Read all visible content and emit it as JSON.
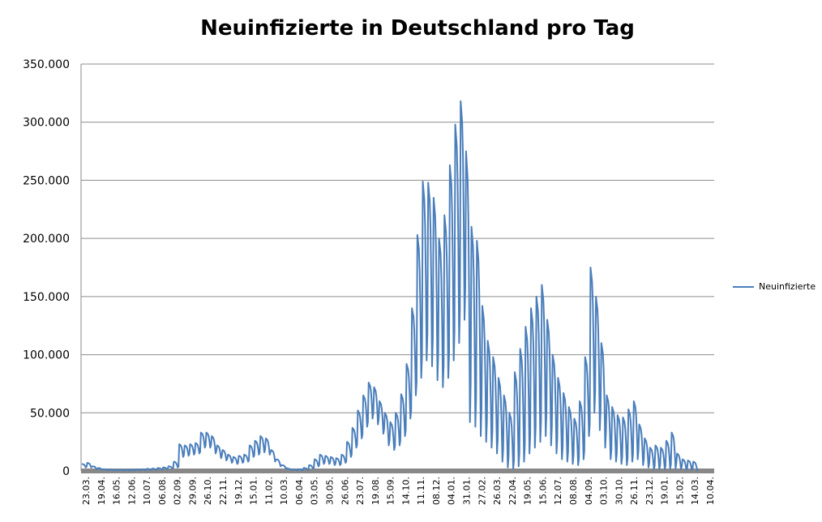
{
  "chart_data": {
    "type": "line",
    "title": "Neuinfizierte in Deutschland pro Tag",
    "xlabel": "",
    "ylabel": "",
    "ylim": [
      0,
      350000
    ],
    "y_ticks": [
      "0",
      "50.000",
      "100.000",
      "150.000",
      "200.000",
      "250.000",
      "300.000",
      "350.000"
    ],
    "x_ticks": [
      "23.03.",
      "19.04.",
      "16.05.",
      "12.06.",
      "10.07.",
      "06.08.",
      "02.09.",
      "29.09.",
      "26.10.",
      "22.11.",
      "19.12.",
      "15.01.",
      "11.02.",
      "10.03.",
      "06.04.",
      "03.05.",
      "30.05.",
      "26.06.",
      "23.07.",
      "19.08.",
      "15.09.",
      "14.10.",
      "11.11.",
      "08.12.",
      "04.01.",
      "31.01.",
      "27.02.",
      "26.03.",
      "22.04.",
      "19.05.",
      "15.06.",
      "12.07.",
      "08.08.",
      "04.09.",
      "03.10.",
      "30.10.",
      "26.11.",
      "23.12.",
      "19.01.",
      "15.02.",
      "14.03.",
      "10.04."
    ],
    "grid": true,
    "legend_position": "right",
    "series": [
      {
        "name": "Neuinfizierte",
        "color": "#4a7ebb",
        "weekly_high": [
          6000,
          7000,
          4000,
          2500,
          1500,
          1200,
          1000,
          900,
          900,
          1000,
          1200,
          1500,
          1800,
          2000,
          2500,
          3000,
          4000,
          8000,
          23000,
          22000,
          23000,
          24000,
          33000,
          33000,
          30000,
          22000,
          18000,
          14000,
          12000,
          13000,
          14000,
          22000,
          26000,
          30000,
          28000,
          18000,
          10000,
          5000,
          2000,
          1200,
          1500,
          2500,
          5000,
          10000,
          14000,
          13000,
          12000,
          11000,
          14000,
          25000,
          37000,
          52000,
          65000,
          76000,
          72000,
          60000,
          50000,
          42000,
          50000,
          66000,
          92000,
          140000,
          203000,
          249000,
          248000,
          235000,
          200000,
          220000,
          263000,
          298000,
          318000,
          275000,
          210000,
          198000,
          142000,
          112000,
          98000,
          80000,
          65000,
          50000,
          85000,
          105000,
          124000,
          140000,
          150000,
          160000,
          130000,
          100000,
          80000,
          67000,
          55000,
          45000,
          60000,
          98000,
          175000,
          150000,
          110000,
          65000,
          55000,
          48000,
          46000,
          53000,
          60000,
          40000,
          28000,
          20000,
          22000,
          20000,
          26000,
          33000,
          15000,
          10000,
          9000,
          8000
        ],
        "weekly_low": [
          3000,
          3000,
          1500,
          1000,
          700,
          500,
          400,
          400,
          400,
          500,
          600,
          700,
          900,
          1000,
          1200,
          1500,
          2000,
          3000,
          12000,
          13000,
          14000,
          15000,
          20000,
          20000,
          15000,
          11000,
          9000,
          7000,
          6000,
          7000,
          8000,
          12000,
          14000,
          16000,
          14000,
          8000,
          4000,
          2000,
          800,
          500,
          600,
          1000,
          2000,
          4000,
          6000,
          6000,
          5000,
          5000,
          7000,
          12000,
          20000,
          28000,
          38000,
          45000,
          40000,
          32000,
          22000,
          18000,
          22000,
          30000,
          45000,
          65000,
          80000,
          95000,
          90000,
          78000,
          72000,
          80000,
          95000,
          110000,
          130000,
          42000,
          38000,
          30000,
          25000,
          20000,
          15000,
          8000,
          3000,
          2000,
          4000,
          8000,
          15000,
          20000,
          25000,
          30000,
          22000,
          15000,
          10000,
          8000,
          6000,
          5000,
          10000,
          30000,
          50000,
          35000,
          20000,
          10000,
          8000,
          6000,
          5000,
          8000,
          10000,
          5000,
          3000,
          1500,
          1500,
          1500,
          2000,
          2000,
          1500,
          1000,
          800,
          600
        ]
      }
    ]
  }
}
